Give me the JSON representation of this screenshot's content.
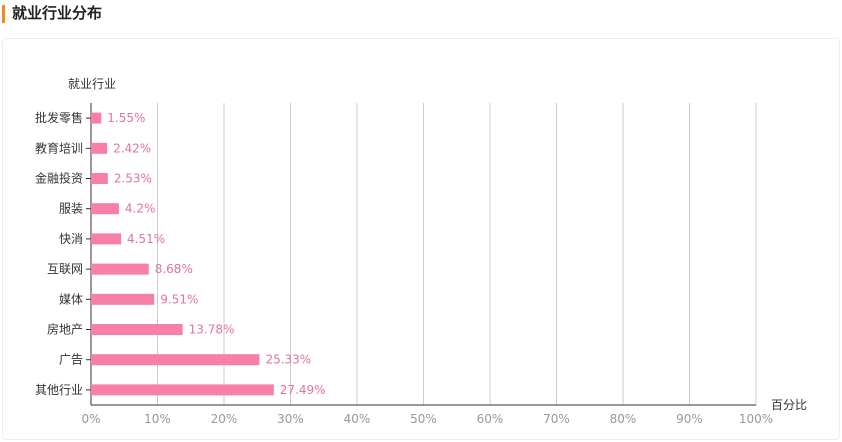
{
  "header": {
    "title": "就业行业分布"
  },
  "chart_data": {
    "type": "bar",
    "orientation": "horizontal",
    "ylabel": "就业行业",
    "xlabel": "百分比",
    "categories": [
      "批发零售",
      "教育培训",
      "金融投资",
      "服装",
      "快消",
      "互联网",
      "媒体",
      "房地产",
      "广告",
      "其他行业"
    ],
    "values": [
      1.55,
      2.42,
      2.53,
      4.2,
      4.51,
      8.68,
      9.51,
      13.78,
      25.33,
      27.49
    ],
    "value_labels": [
      "1.55%",
      "2.42%",
      "2.53%",
      "4.2%",
      "4.51%",
      "8.68%",
      "9.51%",
      "13.78%",
      "25.33%",
      "27.49%"
    ],
    "xlim": [
      0,
      100
    ],
    "xticks": [
      "0%",
      "10%",
      "20%",
      "30%",
      "40%",
      "50%",
      "60%",
      "70%",
      "80%",
      "90%",
      "100%"
    ],
    "grid": true,
    "bar_color": "#f77fa8",
    "label_color": "#e2759b"
  }
}
